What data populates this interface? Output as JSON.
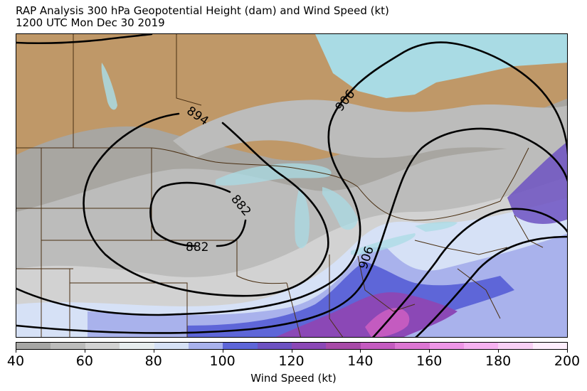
{
  "title": {
    "line1": "RAP Analysis 300 hPa Geopotential Height (dam) and Wind Speed (kt)",
    "line2": "1200 UTC Mon Dec 30 2019"
  },
  "map": {
    "land_color": "#bf9868",
    "water_color": "#a9dbe4",
    "border_color": "#4a2f12",
    "contour_color": "#000000",
    "contour_labels": [
      "894",
      "882",
      "882",
      "906",
      "906"
    ]
  },
  "colorbar": {
    "label": "Wind Speed (kt)",
    "ticks": [
      "40",
      "60",
      "80",
      "100",
      "120",
      "140",
      "160",
      "180",
      "200"
    ],
    "bins": [
      {
        "min": 40,
        "max": 50,
        "color": "#a6a6a4"
      },
      {
        "min": 50,
        "max": 60,
        "color": "#bcbcbb"
      },
      {
        "min": 60,
        "max": 70,
        "color": "#d2d2d2"
      },
      {
        "min": 70,
        "max": 80,
        "color": "#e6ecee"
      },
      {
        "min": 80,
        "max": 90,
        "color": "#d6e1f6"
      },
      {
        "min": 90,
        "max": 100,
        "color": "#a9b2ec"
      },
      {
        "min": 100,
        "max": 110,
        "color": "#5e66d8"
      },
      {
        "min": 110,
        "max": 120,
        "color": "#6d52c2"
      },
      {
        "min": 120,
        "max": 130,
        "color": "#8b48b6"
      },
      {
        "min": 130,
        "max": 140,
        "color": "#a84aa8"
      },
      {
        "min": 140,
        "max": 150,
        "color": "#c45bc0"
      },
      {
        "min": 150,
        "max": 160,
        "color": "#dc76d2"
      },
      {
        "min": 160,
        "max": 170,
        "color": "#ee96e6"
      },
      {
        "min": 170,
        "max": 180,
        "color": "#f6b2f0"
      },
      {
        "min": 180,
        "max": 190,
        "color": "#f8d0f4"
      },
      {
        "min": 190,
        "max": 200,
        "color": "#fdeefc"
      }
    ]
  }
}
